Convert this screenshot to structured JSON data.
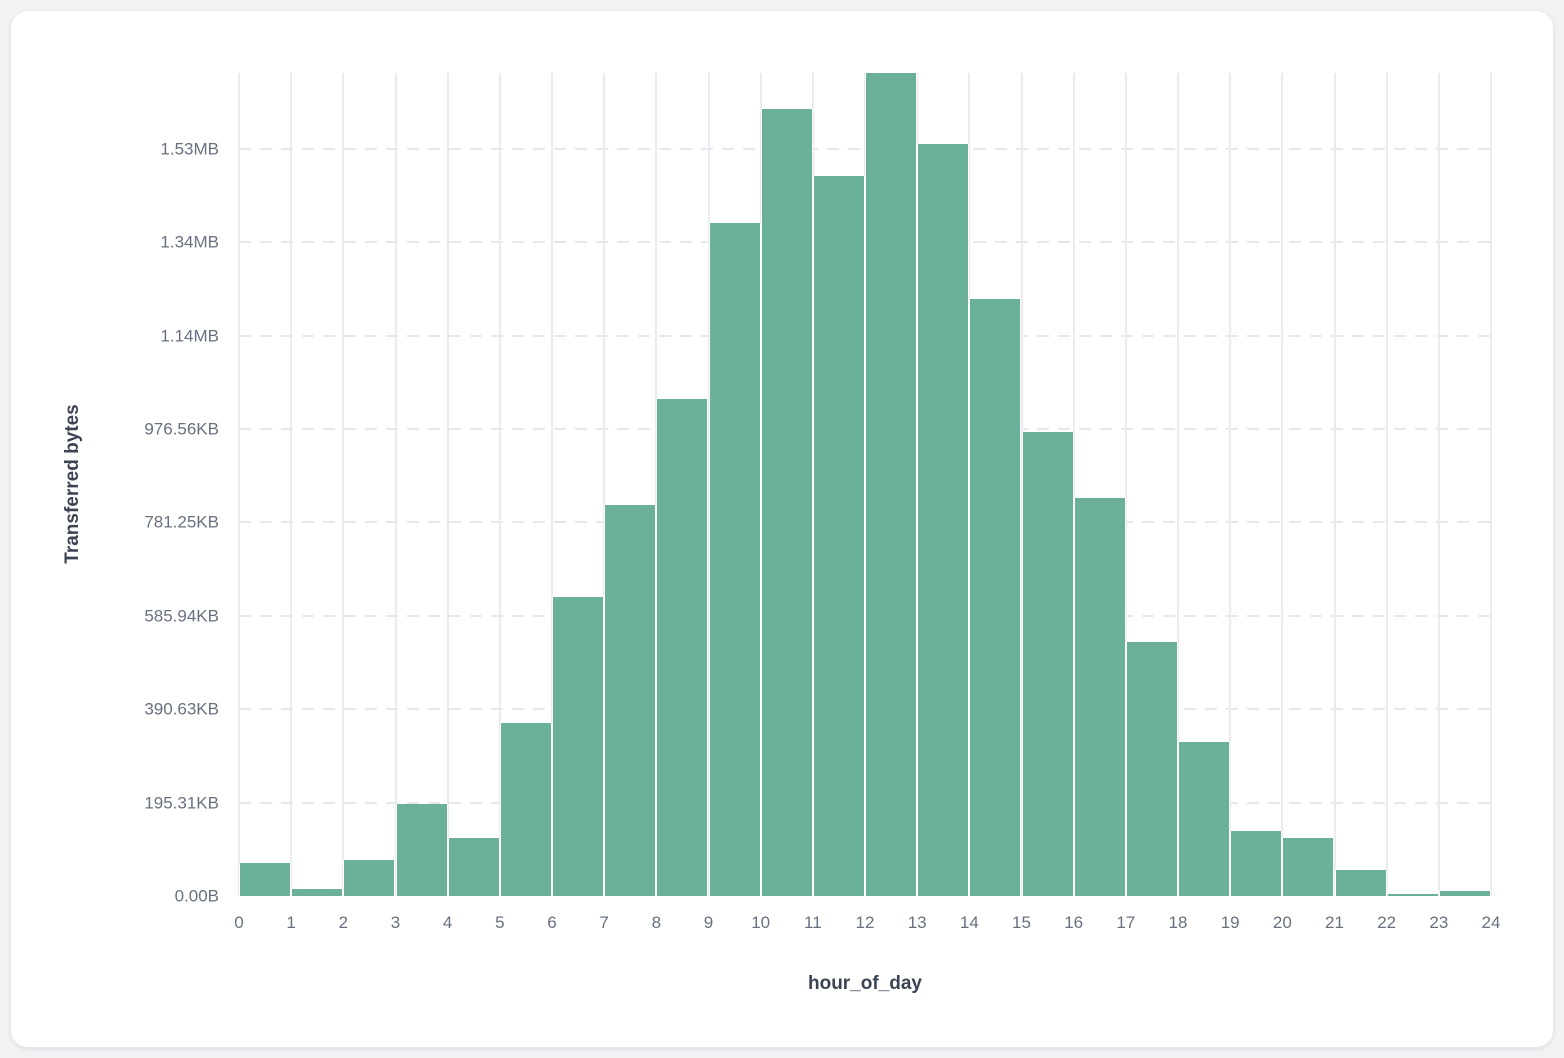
{
  "page": {
    "background_color": "#f1f2f4",
    "card_background_color": "#ffffff",
    "card_border_color": "#e7e9ec"
  },
  "chart_data": {
    "type": "bar",
    "title": "",
    "xlabel": "hour_of_day",
    "ylabel": "Transferred bytes",
    "legend": "none",
    "grid": {
      "vertical_solid": true,
      "horizontal_dashed": true
    },
    "bar_color": "#6bb098",
    "gridline_color_vertical": "#e9ebf1",
    "gridline_color_horizontal": "#e5e8ee",
    "tick_label_color": "#687180",
    "axis_title_color": "#3c4454",
    "x_bin_edges": [
      0,
      1,
      2,
      3,
      4,
      5,
      6,
      7,
      8,
      9,
      10,
      11,
      12,
      13,
      14,
      15,
      16,
      17,
      18,
      19,
      20,
      21,
      22,
      23,
      24
    ],
    "x_tick_labels": [
      "0",
      "1",
      "2",
      "3",
      "4",
      "5",
      "6",
      "7",
      "8",
      "9",
      "10",
      "11",
      "12",
      "13",
      "14",
      "15",
      "16",
      "17",
      "18",
      "19",
      "20",
      "21",
      "22",
      "23",
      "24"
    ],
    "categories": [
      "0-1",
      "1-2",
      "2-3",
      "3-4",
      "4-5",
      "5-6",
      "6-7",
      "7-8",
      "8-9",
      "9-10",
      "10-11",
      "11-12",
      "12-13",
      "13-14",
      "14-15",
      "15-16",
      "16-17",
      "17-18",
      "18-19",
      "19-20",
      "20-21",
      "21-22",
      "22-23",
      "23-24"
    ],
    "values_bytes": [
      70000,
      15000,
      77000,
      196000,
      124000,
      370000,
      640000,
      837000,
      1065000,
      1440000,
      1686000,
      1542000,
      1762000,
      1611000,
      1279000,
      994000,
      853000,
      544000,
      330000,
      139000,
      124000,
      55000,
      4000,
      11000
    ],
    "ylim_bytes": [
      0,
      1762000
    ],
    "ymax_bytes": 1762000,
    "y_ticks": [
      {
        "label": "0.00B",
        "bytes": 0
      },
      {
        "label": "195.31KB",
        "bytes": 200000
      },
      {
        "label": "390.63KB",
        "bytes": 400000
      },
      {
        "label": "585.94KB",
        "bytes": 600000
      },
      {
        "label": "781.25KB",
        "bytes": 800000
      },
      {
        "label": "976.56KB",
        "bytes": 1000000
      },
      {
        "label": "1.14MB",
        "bytes": 1200000
      },
      {
        "label": "1.34MB",
        "bytes": 1400000
      },
      {
        "label": "1.53MB",
        "bytes": 1600000
      }
    ]
  }
}
